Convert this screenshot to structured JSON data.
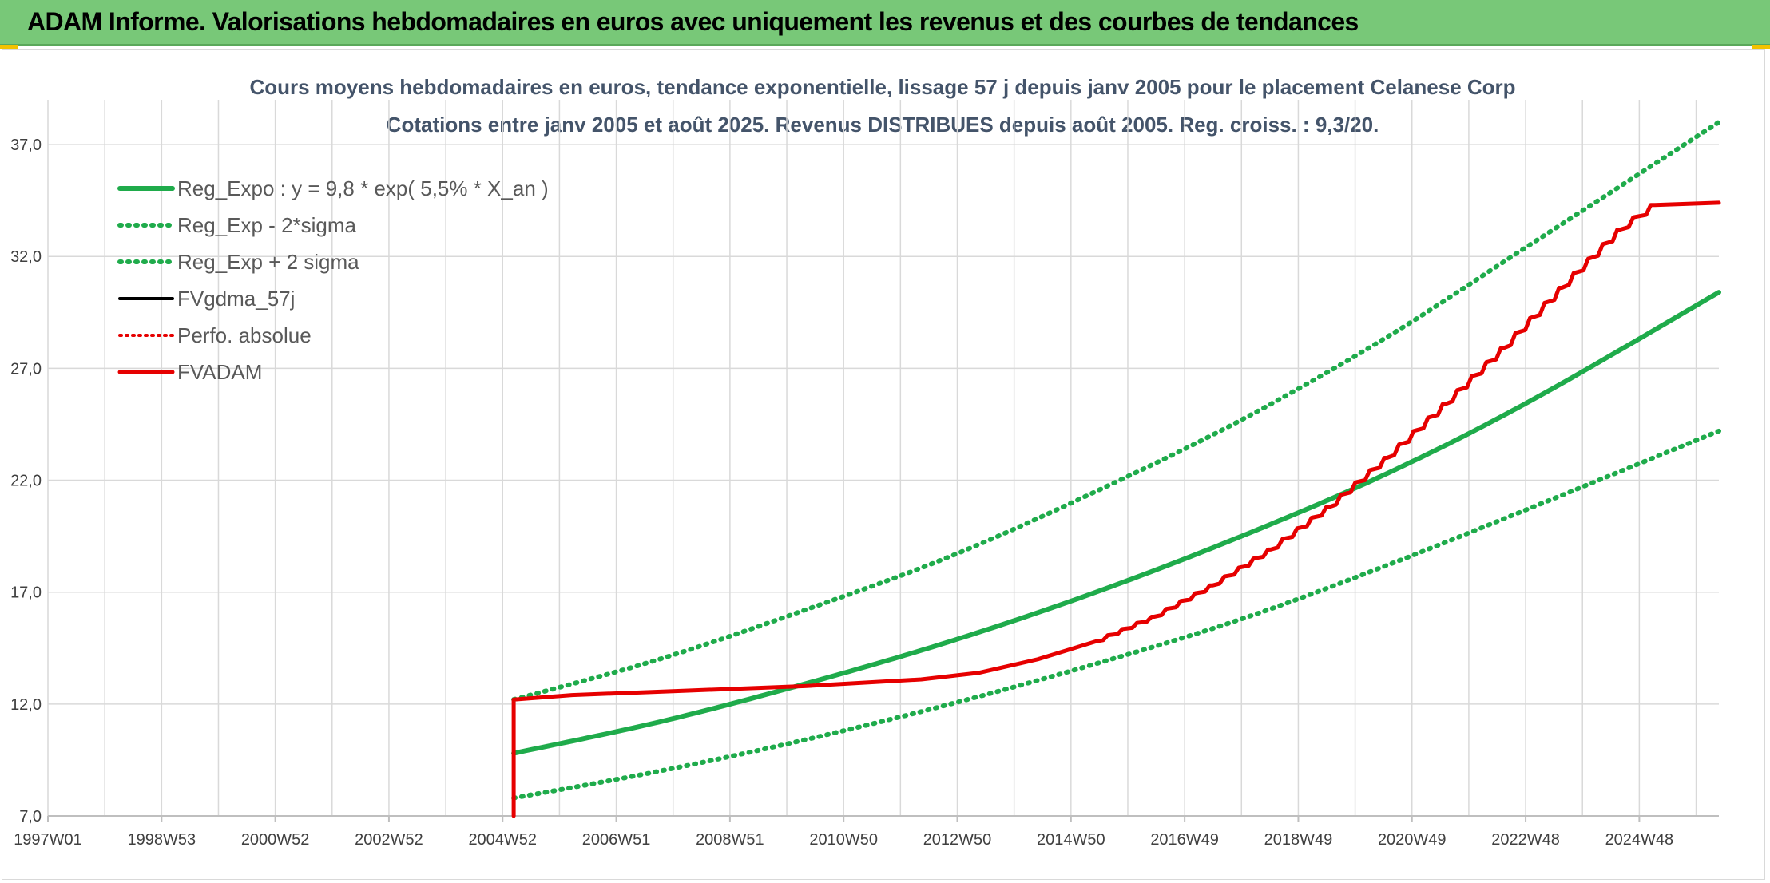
{
  "banner": {
    "title": "ADAM Informe. Valorisations hebdomadaires en euros avec uniquement les revenus et des courbes de tendances"
  },
  "colors": {
    "banner_bg": "#78c878",
    "green": "#1fab4b",
    "red": "#e60000",
    "black": "#000000",
    "grid": "#d9d9d9",
    "title_text": "#44546a"
  },
  "chart_data": {
    "type": "line",
    "title": "Cours moyens hebdomadaires en euros, tendance exponentielle, lissage 57 j depuis janv 2005 pour le placement Celanese Corp",
    "subtitle": "Cotations entre janv 2005 et août 2025. Revenus DISTRIBUES depuis août 2005. Reg. croiss. : 9,3/20.",
    "xlabel": "",
    "ylabel": "",
    "x_tick_labels": [
      "1997W01",
      "1998W53",
      "2000W52",
      "2002W52",
      "2004W52",
      "2006W51",
      "2008W51",
      "2010W50",
      "2012W50",
      "2014W50",
      "2016W49",
      "2018W49",
      "2020W49",
      "2022W48",
      "2024W48"
    ],
    "y_ticks": [
      "7,0",
      "12,0",
      "17,0",
      "22,0",
      "27,0",
      "32,0",
      "37,0"
    ],
    "y_tick_values": [
      7,
      12,
      17,
      22,
      27,
      32,
      37
    ],
    "xlim": [
      1997.0,
      2025.7
    ],
    "ylim": [
      7,
      39
    ],
    "grid": true,
    "legend_position": "top-left",
    "series": [
      {
        "name": "Reg_Expo : y = 9,8 * exp( 5,5% *  X_an )",
        "style": "solid-green",
        "x": [
          2005.0,
          2007.5,
          2010.0,
          2012.5,
          2015.0,
          2017.5,
          2020.0,
          2022.5,
          2025.7
        ],
        "values": [
          9.8,
          11.2,
          12.9,
          14.8,
          17.0,
          19.5,
          22.3,
          25.6,
          30.4
        ]
      },
      {
        "name": "Reg_Exp - 2*sigma",
        "style": "dotted-green",
        "x": [
          2005.0,
          2007.5,
          2010.0,
          2012.5,
          2015.0,
          2017.5,
          2020.0,
          2022.5,
          2025.7
        ],
        "values": [
          7.8,
          9.0,
          10.4,
          12.0,
          13.8,
          15.8,
          18.2,
          20.8,
          24.2
        ]
      },
      {
        "name": "Reg_Exp + 2 sigma",
        "style": "dotted-green",
        "x": [
          2005.0,
          2007.5,
          2010.0,
          2012.5,
          2015.0,
          2017.5,
          2020.0,
          2022.5,
          2025.7
        ],
        "values": [
          12.2,
          14.0,
          16.2,
          18.6,
          21.5,
          24.7,
          28.4,
          32.6,
          38.0
        ]
      },
      {
        "name": "FVgdma_57j",
        "style": "solid-black",
        "x": [
          2005.0,
          2006.0,
          2008.0,
          2010.0,
          2012.0,
          2013.0,
          2014.0,
          2015.0,
          2016.0,
          2017.0,
          2018.0,
          2019.0,
          2020.0,
          2021.0,
          2022.0,
          2023.0,
          2024.0,
          2024.6,
          2025.7
        ],
        "values": [
          12.2,
          12.4,
          12.6,
          12.8,
          13.1,
          13.4,
          14.0,
          14.8,
          15.9,
          17.3,
          18.9,
          20.8,
          23.0,
          25.4,
          27.9,
          30.6,
          33.2,
          34.3,
          34.4
        ]
      },
      {
        "name": "Perfo. absolue",
        "style": "dotted-red",
        "x": [],
        "values": []
      },
      {
        "name": "FVADAM",
        "style": "solid-red",
        "x": [
          2005.0,
          2005.0,
          2006.0,
          2008.0,
          2010.0,
          2012.0,
          2013.0,
          2014.0,
          2015.0,
          2016.0,
          2017.0,
          2018.0,
          2019.0,
          2020.0,
          2021.0,
          2022.0,
          2023.0,
          2024.0,
          2024.6,
          2025.7
        ],
        "values": [
          7.0,
          12.2,
          12.4,
          12.6,
          12.8,
          13.1,
          13.4,
          14.0,
          14.8,
          15.9,
          17.3,
          18.9,
          20.8,
          23.0,
          25.4,
          27.9,
          30.6,
          33.2,
          34.3,
          34.4
        ]
      }
    ]
  }
}
